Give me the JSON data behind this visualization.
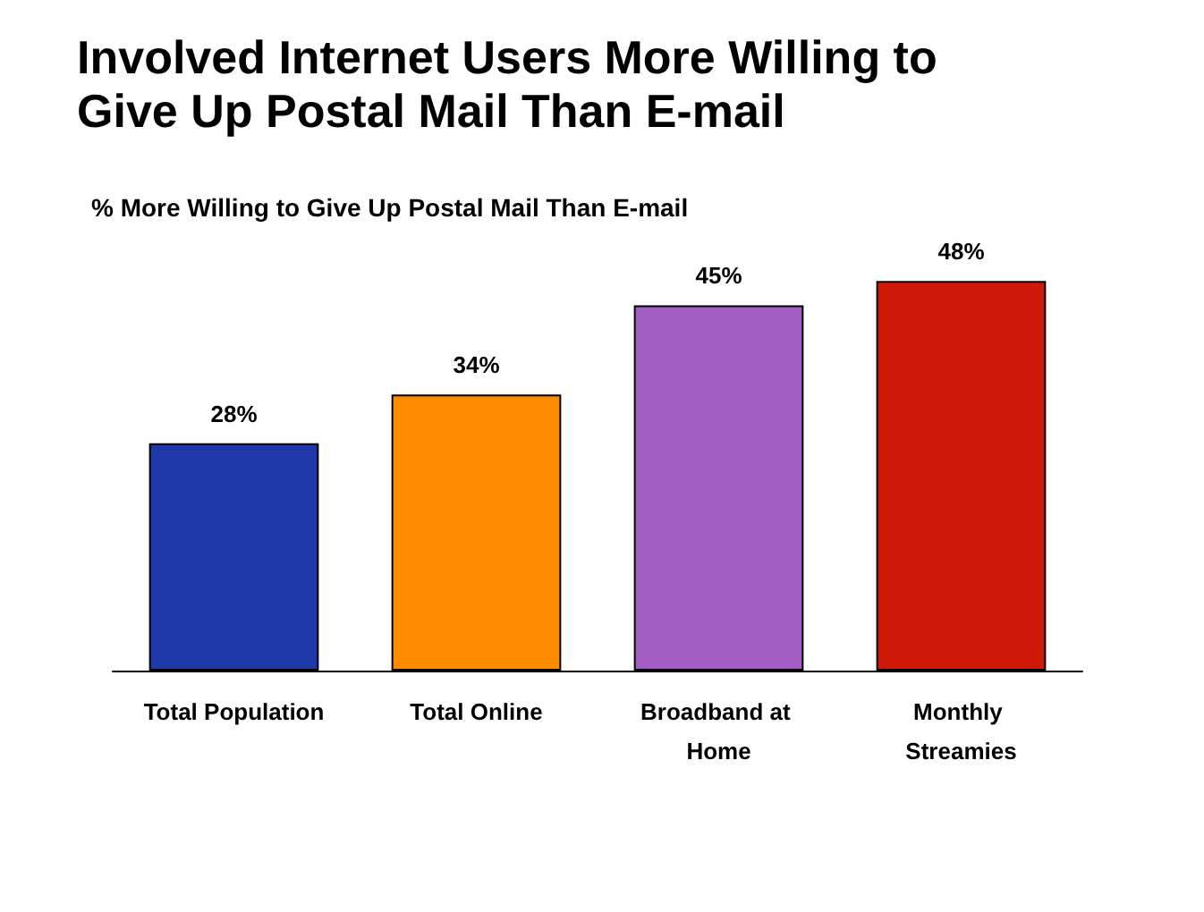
{
  "chart_data": {
    "type": "bar",
    "title": "Involved Internet Users More Willing to Give Up Postal Mail Than E-mail",
    "subtitle": "% More Willing to Give Up Postal Mail Than E-mail",
    "categories": [
      "Total Population",
      "Total Online",
      "Broadband at Home",
      "Monthly Streamies"
    ],
    "values": [
      28,
      34,
      45,
      48
    ],
    "colors": [
      "#1f3aa8",
      "#ff8a00",
      "#a35cc4",
      "#d01a08"
    ],
    "value_labels": [
      "28%",
      "34%",
      "45%",
      "48%"
    ]
  }
}
